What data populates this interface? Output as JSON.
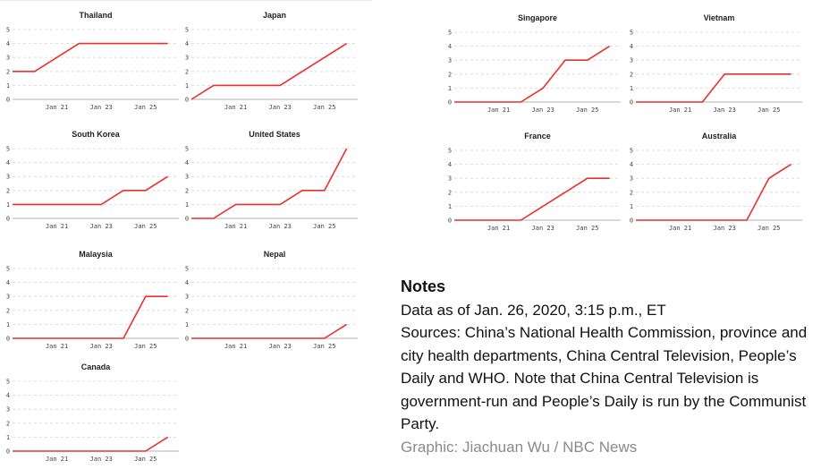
{
  "colors": {
    "line": "#e8302e",
    "grid": "#d6d6d6",
    "axis": "#999999",
    "text": "#222222",
    "credit": "#8a8a8a"
  },
  "chart_data": [
    {
      "type": "line",
      "title": "Thailand",
      "x": [
        19,
        20,
        21,
        22,
        23,
        24,
        25,
        26
      ],
      "values": [
        2,
        2,
        3,
        4,
        4,
        4,
        4,
        4
      ],
      "xticks": [
        21,
        23,
        25
      ],
      "xtick_labels": [
        "Jan 21",
        "Jan 23",
        "Jan 25"
      ],
      "yticks": [
        0,
        1,
        2,
        3,
        4,
        5
      ],
      "ylim": [
        0,
        5
      ],
      "xlim": [
        19,
        26.5
      ],
      "grid": true
    },
    {
      "type": "line",
      "title": "Japan",
      "x": [
        19,
        20,
        21,
        22,
        23,
        24,
        25,
        26
      ],
      "values": [
        0,
        1,
        1,
        1,
        1,
        2,
        3,
        4
      ],
      "xticks": [
        21,
        23,
        25
      ],
      "xtick_labels": [
        "Jan 21",
        "Jan 23",
        "Jan 25"
      ],
      "yticks": [
        0,
        1,
        2,
        3,
        4,
        5
      ],
      "ylim": [
        0,
        5
      ],
      "xlim": [
        19,
        26.5
      ],
      "grid": true
    },
    {
      "type": "line",
      "title": "South Korea",
      "x": [
        19,
        20,
        21,
        22,
        23,
        24,
        25,
        26
      ],
      "values": [
        1,
        1,
        1,
        1,
        1,
        2,
        2,
        3
      ],
      "xticks": [
        21,
        23,
        25
      ],
      "xtick_labels": [
        "Jan 21",
        "Jan 23",
        "Jan 25"
      ],
      "yticks": [
        0,
        1,
        2,
        3,
        4,
        5
      ],
      "ylim": [
        0,
        5
      ],
      "xlim": [
        19,
        26.5
      ],
      "grid": true
    },
    {
      "type": "line",
      "title": "United States",
      "x": [
        19,
        20,
        21,
        22,
        23,
        24,
        25,
        26
      ],
      "values": [
        0,
        0,
        1,
        1,
        1,
        2,
        2,
        5
      ],
      "xticks": [
        21,
        23,
        25
      ],
      "xtick_labels": [
        "Jan 21",
        "Jan 23",
        "Jan 25"
      ],
      "yticks": [
        0,
        1,
        2,
        3,
        4,
        5
      ],
      "ylim": [
        0,
        5
      ],
      "xlim": [
        19,
        26.5
      ],
      "grid": true
    },
    {
      "type": "line",
      "title": "Malaysia",
      "x": [
        19,
        20,
        21,
        22,
        23,
        24,
        25,
        26
      ],
      "values": [
        0,
        0,
        0,
        0,
        0,
        0,
        3,
        3
      ],
      "xticks": [
        21,
        23,
        25
      ],
      "xtick_labels": [
        "Jan 21",
        "Jan 23",
        "Jan 25"
      ],
      "yticks": [
        0,
        1,
        2,
        3,
        4,
        5
      ],
      "ylim": [
        0,
        5
      ],
      "xlim": [
        19,
        26.5
      ],
      "grid": true
    },
    {
      "type": "line",
      "title": "Nepal",
      "x": [
        19,
        20,
        21,
        22,
        23,
        24,
        25,
        26
      ],
      "values": [
        0,
        0,
        0,
        0,
        0,
        0,
        0,
        1
      ],
      "xticks": [
        21,
        23,
        25
      ],
      "xtick_labels": [
        "Jan 21",
        "Jan 23",
        "Jan 25"
      ],
      "yticks": [
        0,
        1,
        2,
        3,
        4,
        5
      ],
      "ylim": [
        0,
        5
      ],
      "xlim": [
        19,
        26.5
      ],
      "grid": true
    },
    {
      "type": "line",
      "title": "Canada",
      "x": [
        19,
        20,
        21,
        22,
        23,
        24,
        25,
        26
      ],
      "values": [
        0,
        0,
        0,
        0,
        0,
        0,
        0,
        1
      ],
      "xticks": [
        21,
        23,
        25
      ],
      "xtick_labels": [
        "Jan 21",
        "Jan 23",
        "Jan 25"
      ],
      "yticks": [
        0,
        1,
        2,
        3,
        4,
        5
      ],
      "ylim": [
        0,
        5
      ],
      "xlim": [
        19,
        26.5
      ],
      "grid": true
    },
    {
      "type": "line",
      "title": "Singapore",
      "x": [
        19,
        20,
        21,
        22,
        23,
        24,
        25,
        26
      ],
      "values": [
        0,
        0,
        0,
        0,
        1,
        3,
        3,
        4
      ],
      "xticks": [
        21,
        23,
        25
      ],
      "xtick_labels": [
        "Jan 21",
        "Jan 23",
        "Jan 25"
      ],
      "yticks": [
        0,
        1,
        2,
        3,
        4,
        5
      ],
      "ylim": [
        0,
        5
      ],
      "xlim": [
        19,
        26.5
      ],
      "grid": true
    },
    {
      "type": "line",
      "title": "Vietnam",
      "x": [
        19,
        20,
        21,
        22,
        23,
        24,
        25,
        26
      ],
      "values": [
        0,
        0,
        0,
        0,
        2,
        2,
        2,
        2
      ],
      "xticks": [
        21,
        23,
        25
      ],
      "xtick_labels": [
        "Jan 21",
        "Jan 23",
        "Jan 25"
      ],
      "yticks": [
        0,
        1,
        2,
        3,
        4,
        5
      ],
      "ylim": [
        0,
        5
      ],
      "xlim": [
        19,
        26.5
      ],
      "grid": true
    },
    {
      "type": "line",
      "title": "France",
      "x": [
        19,
        20,
        21,
        22,
        23,
        24,
        25,
        26
      ],
      "values": [
        0,
        0,
        0,
        0,
        1,
        2,
        3,
        3
      ],
      "xticks": [
        21,
        23,
        25
      ],
      "xtick_labels": [
        "Jan 21",
        "Jan 23",
        "Jan 25"
      ],
      "yticks": [
        0,
        1,
        2,
        3,
        4,
        5
      ],
      "ylim": [
        0,
        5
      ],
      "xlim": [
        19,
        26.5
      ],
      "grid": true
    },
    {
      "type": "line",
      "title": "Australia",
      "x": [
        19,
        20,
        21,
        22,
        23,
        24,
        25,
        26
      ],
      "values": [
        0,
        0,
        0,
        0,
        0,
        0,
        3,
        4
      ],
      "xticks": [
        21,
        23,
        25
      ],
      "xtick_labels": [
        "Jan 21",
        "Jan 23",
        "Jan 25"
      ],
      "yticks": [
        0,
        1,
        2,
        3,
        4,
        5
      ],
      "ylim": [
        0,
        5
      ],
      "xlim": [
        19,
        26.5
      ],
      "grid": true
    }
  ],
  "notes": {
    "heading": "Notes",
    "date_line": "Data as of Jan. 26, 2020, 3:15 p.m., ET",
    "sources": "Sources: China’s National Health Commission, province and city health departments, China Central Television, People’s Daily and WHO. Note that China Central Television is government-run and People’s Daily is run by the Communist Party.",
    "credit": "Graphic: Jiachuan Wu / NBC News"
  }
}
